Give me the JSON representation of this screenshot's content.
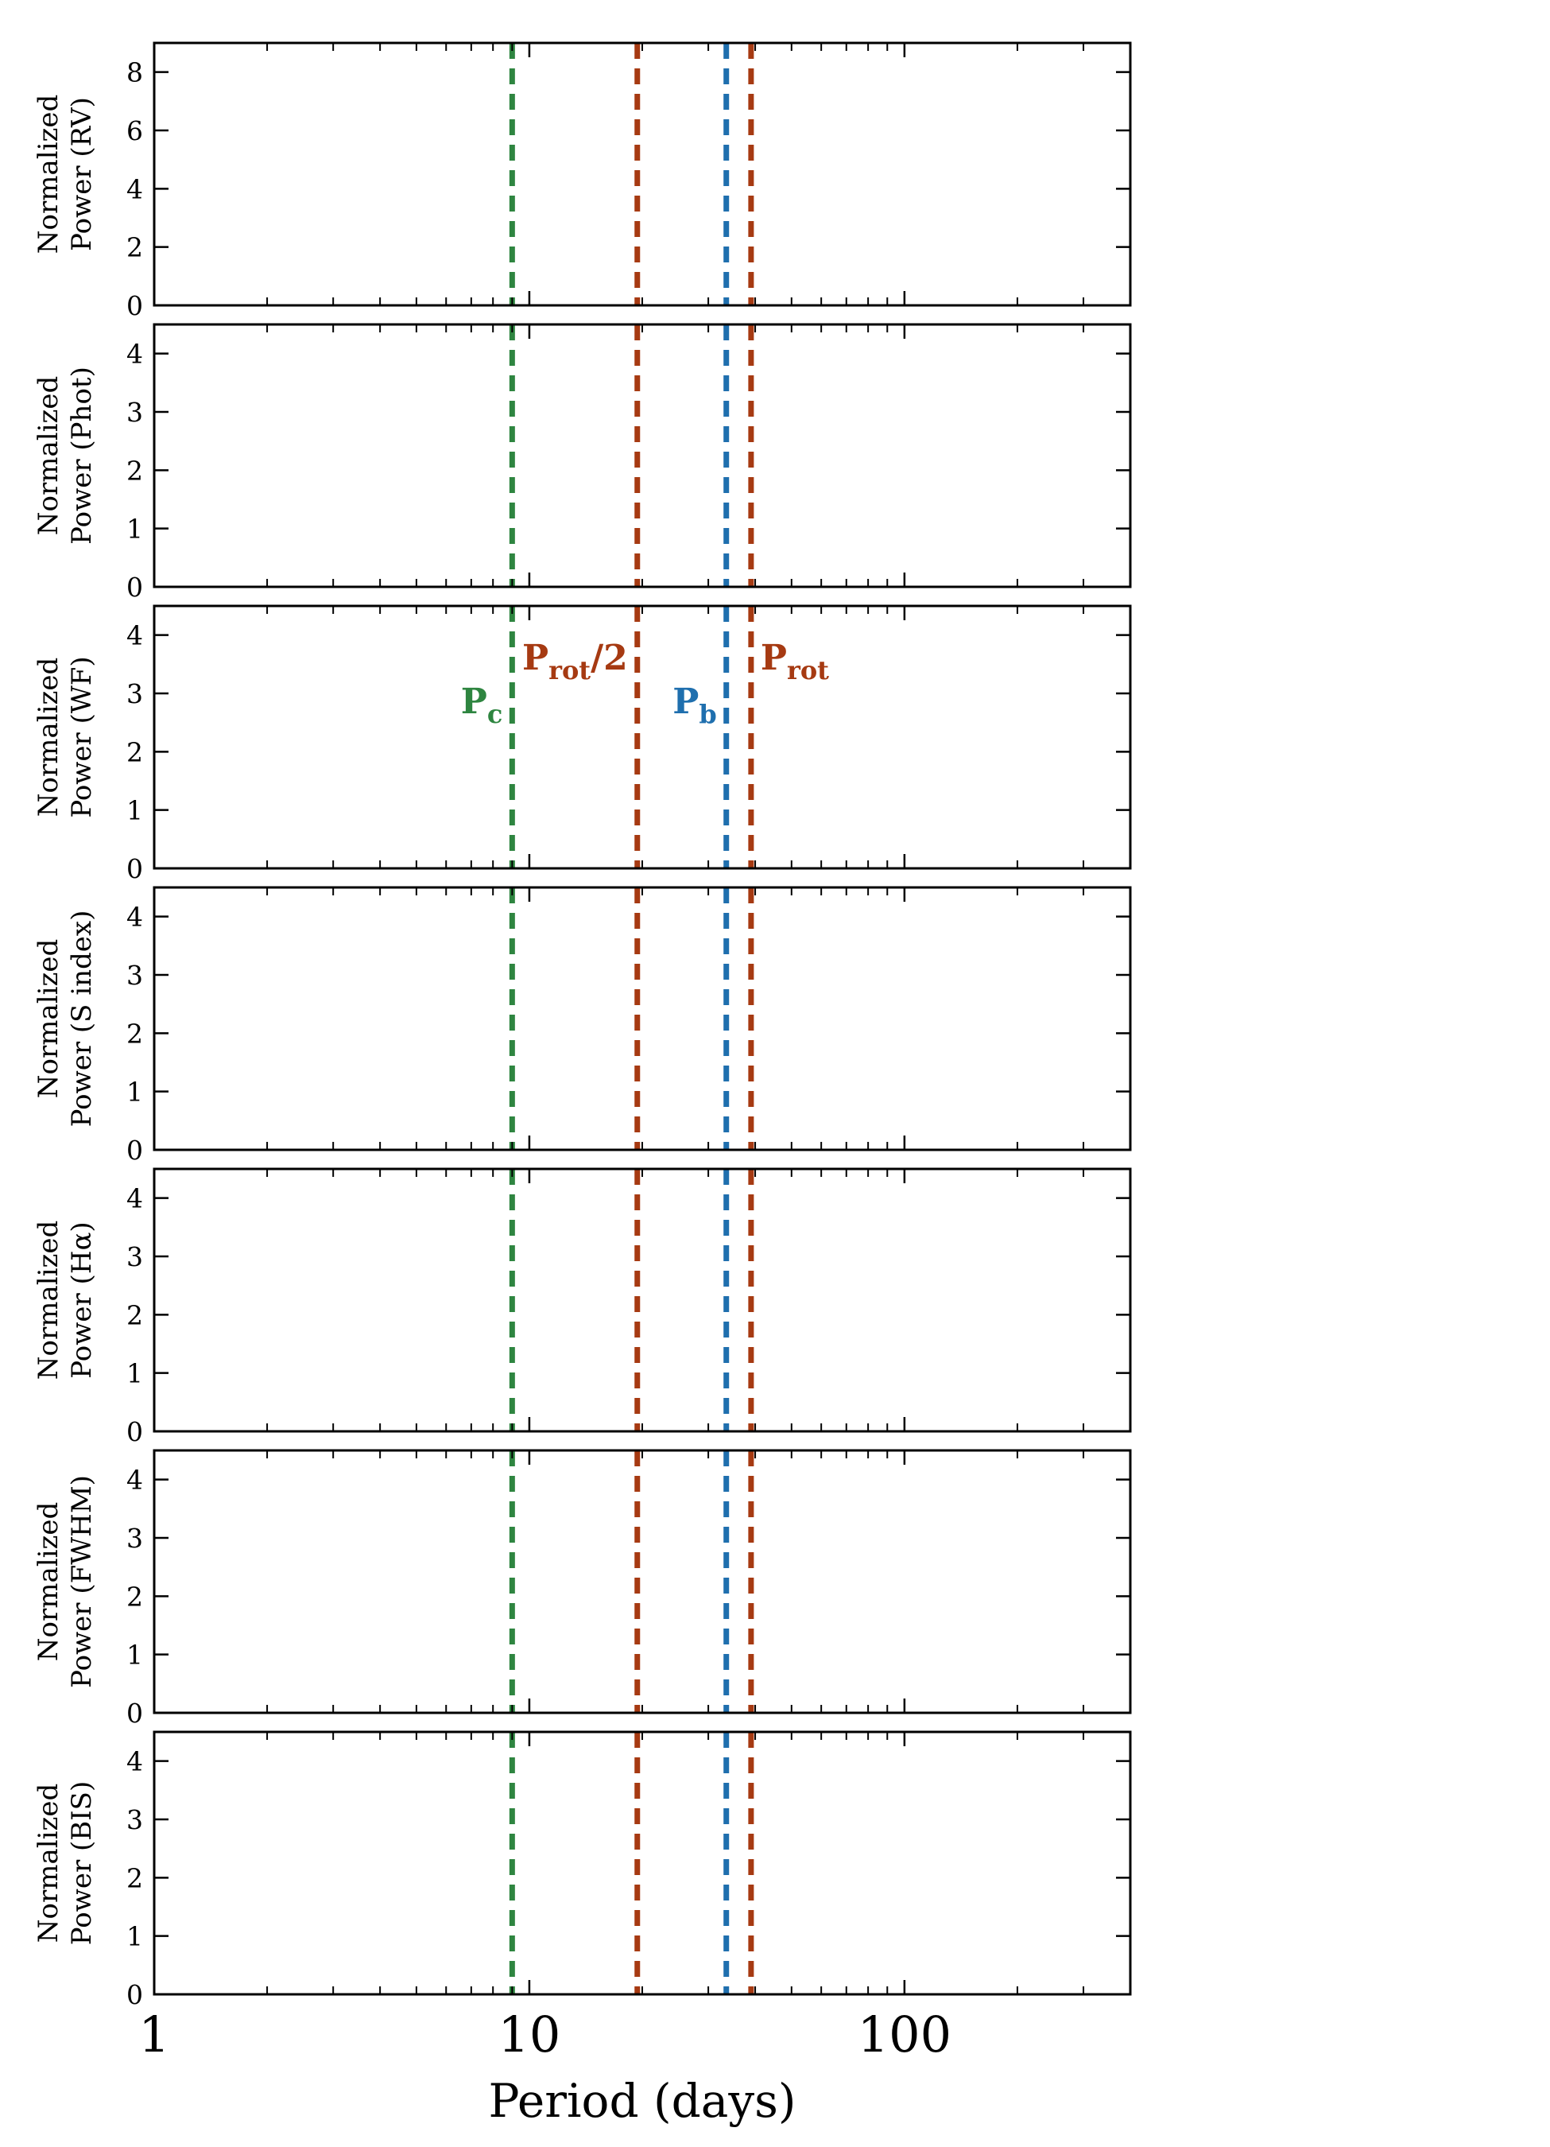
{
  "chart_data": {
    "type": "line",
    "xscale": "log",
    "xlim": [
      1,
      400
    ],
    "xlabel": "Period (days)",
    "x_tick_labels": [
      "1",
      "10",
      "100"
    ],
    "x_tick_values": [
      1,
      10,
      100
    ],
    "colors": {
      "planet_c": "#2e8540",
      "rotation": "#a63a12",
      "planet_b": "#1f6fae"
    },
    "vlines": [
      {
        "key": "planet_c",
        "period": 9.0,
        "color": "#2e8540"
      },
      {
        "key": "prot_half",
        "period": 19.4,
        "color": "#a63a12"
      },
      {
        "key": "planet_b",
        "period": 33.5,
        "color": "#1f6fae"
      },
      {
        "key": "prot",
        "period": 39.0,
        "color": "#a63a12"
      }
    ],
    "annotations": {
      "panel": 2,
      "items": [
        {
          "key": "planet_c",
          "main": "P",
          "sub": "c",
          "tail": "",
          "color": "#2e8540",
          "period": 9.0,
          "y": 2.85,
          "side": "left"
        },
        {
          "key": "prot_half",
          "main": "P",
          "sub": "rot",
          "tail": "/2",
          "color": "#a63a12",
          "period": 19.4,
          "y": 3.6,
          "side": "left"
        },
        {
          "key": "planet_b",
          "main": "P",
          "sub": "b",
          "tail": "",
          "color": "#1f6fae",
          "period": 33.5,
          "y": 2.85,
          "side": "left"
        },
        {
          "key": "prot",
          "main": "P",
          "sub": "rot",
          "tail": "",
          "color": "#a63a12",
          "period": 39.0,
          "y": 3.6,
          "side": "right"
        }
      ]
    },
    "panels": [
      {
        "ylabel_line1": "Normalized",
        "ylabel_line2": "Power (RV)",
        "ylim": [
          0,
          9
        ],
        "yticks": [
          0,
          2,
          4,
          6,
          8
        ]
      },
      {
        "ylabel_line1": "Normalized",
        "ylabel_line2": "Power (Phot)",
        "ylim": [
          0,
          4.5
        ],
        "yticks": [
          0,
          1,
          2,
          3,
          4
        ]
      },
      {
        "ylabel_line1": "Normalized",
        "ylabel_line2": "Power (WF)",
        "ylim": [
          0,
          4.5
        ],
        "yticks": [
          0,
          1,
          2,
          3,
          4
        ]
      },
      {
        "ylabel_line1": "Normalized",
        "ylabel_line2": "Power (S index)",
        "ylim": [
          0,
          4.5
        ],
        "yticks": [
          0,
          1,
          2,
          3,
          4
        ]
      },
      {
        "ylabel_line1": "Normalized",
        "ylabel_line2": "Power (Hα)",
        "ylim": [
          0,
          4.5
        ],
        "yticks": [
          0,
          1,
          2,
          3,
          4
        ]
      },
      {
        "ylabel_line1": "Normalized",
        "ylabel_line2": "Power (FWHM)",
        "ylim": [
          0,
          4.5
        ],
        "yticks": [
          0,
          1,
          2,
          3,
          4
        ]
      },
      {
        "ylabel_line1": "Normalized",
        "ylabel_line2": "Power (BIS)",
        "ylim": [
          0,
          4.5
        ],
        "yticks": [
          0,
          1,
          2,
          3,
          4
        ]
      }
    ]
  }
}
